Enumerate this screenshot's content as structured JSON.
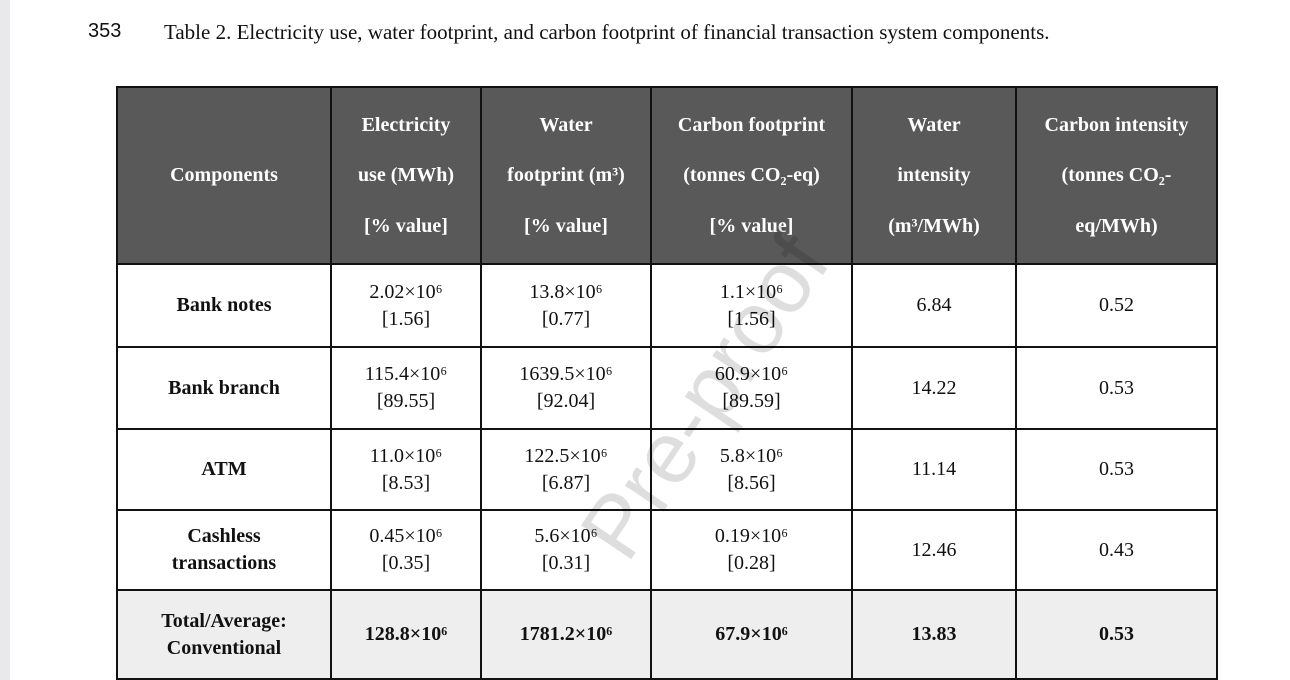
{
  "line_number": "353",
  "caption": "Table 2. Electricity use, water footprint, and carbon footprint of financial transaction system components.",
  "watermark": "Pre-proof",
  "table": {
    "header": [
      [
        "Components"
      ],
      [
        "Electricity",
        "use (MWh)",
        "[% value]"
      ],
      [
        "Water",
        "footprint (m³)",
        "[% value]"
      ],
      [
        "Carbon footprint",
        "(tonnes CO₂-eq)",
        "[% value]"
      ],
      [
        "Water",
        "intensity",
        "(m³/MWh)"
      ],
      [
        "Carbon intensity",
        "(tonnes CO₂-",
        "eq/MWh)"
      ]
    ],
    "rows": [
      [
        [
          "Bank notes"
        ],
        [
          "2.02×10⁶",
          "[1.56]"
        ],
        [
          "13.8×10⁶",
          "[0.77]"
        ],
        [
          "1.1×10⁶",
          "[1.56]"
        ],
        [
          "6.84"
        ],
        [
          "0.52"
        ]
      ],
      [
        [
          "Bank branch"
        ],
        [
          "115.4×10⁶",
          "[89.55]"
        ],
        [
          "1639.5×10⁶",
          "[92.04]"
        ],
        [
          "60.9×10⁶",
          "[89.59]"
        ],
        [
          "14.22"
        ],
        [
          "0.53"
        ]
      ],
      [
        [
          "ATM"
        ],
        [
          "11.0×10⁶",
          "[8.53]"
        ],
        [
          "122.5×10⁶",
          "[6.87]"
        ],
        [
          "5.8×10⁶",
          "[8.56]"
        ],
        [
          "11.14"
        ],
        [
          "0.53"
        ]
      ],
      [
        [
          "Cashless",
          "transactions"
        ],
        [
          "0.45×10⁶",
          "[0.35]"
        ],
        [
          "5.6×10⁶",
          "[0.31]"
        ],
        [
          "0.19×10⁶",
          "[0.28]"
        ],
        [
          "12.46"
        ],
        [
          "0.43"
        ]
      ],
      [
        [
          "Total/Average:",
          "Conventional"
        ],
        [
          "128.8×10⁶"
        ],
        [
          "1781.2×10⁶"
        ],
        [
          "67.9×10⁶"
        ],
        [
          "13.83"
        ],
        [
          "0.53"
        ]
      ]
    ]
  }
}
